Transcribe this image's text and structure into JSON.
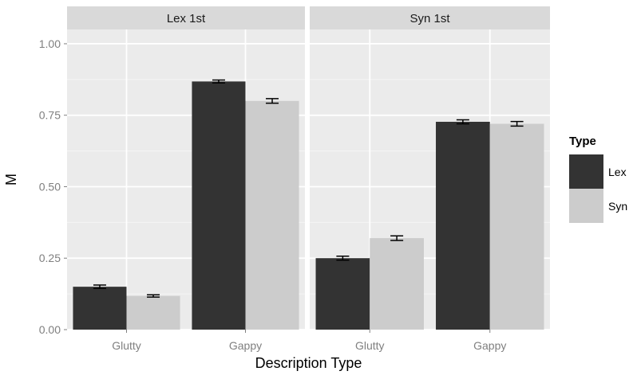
{
  "chart_data": {
    "type": "bar",
    "xlabel": "Description Type",
    "ylabel": "M",
    "ylim": [
      0,
      1.05
    ],
    "yticks": [
      "0.00",
      "0.25",
      "0.50",
      "0.75",
      "1.00"
    ],
    "categories": [
      "Glutty",
      "Gappy"
    ],
    "legend": {
      "title": "Type",
      "placement": "right"
    },
    "grid": true,
    "panels": [
      {
        "label": "Lex 1st",
        "series": [
          {
            "name": "Lex",
            "values": [
              0.15,
              0.868
            ],
            "errors": [
              0.006,
              0.005
            ]
          },
          {
            "name": "Syn",
            "values": [
              0.118,
              0.8
            ],
            "errors": [
              0.004,
              0.008
            ]
          }
        ]
      },
      {
        "label": "Syn 1st",
        "series": [
          {
            "name": "Lex",
            "values": [
              0.25,
              0.727
            ],
            "errors": [
              0.007,
              0.007
            ]
          },
          {
            "name": "Syn",
            "values": [
              0.32,
              0.72
            ],
            "errors": [
              0.008,
              0.008
            ]
          }
        ]
      }
    ],
    "colors": {
      "Lex": "#333333",
      "Syn": "#cccccc",
      "panel_bg": "#ebebeb",
      "strip_bg": "#d9d9d9"
    }
  }
}
